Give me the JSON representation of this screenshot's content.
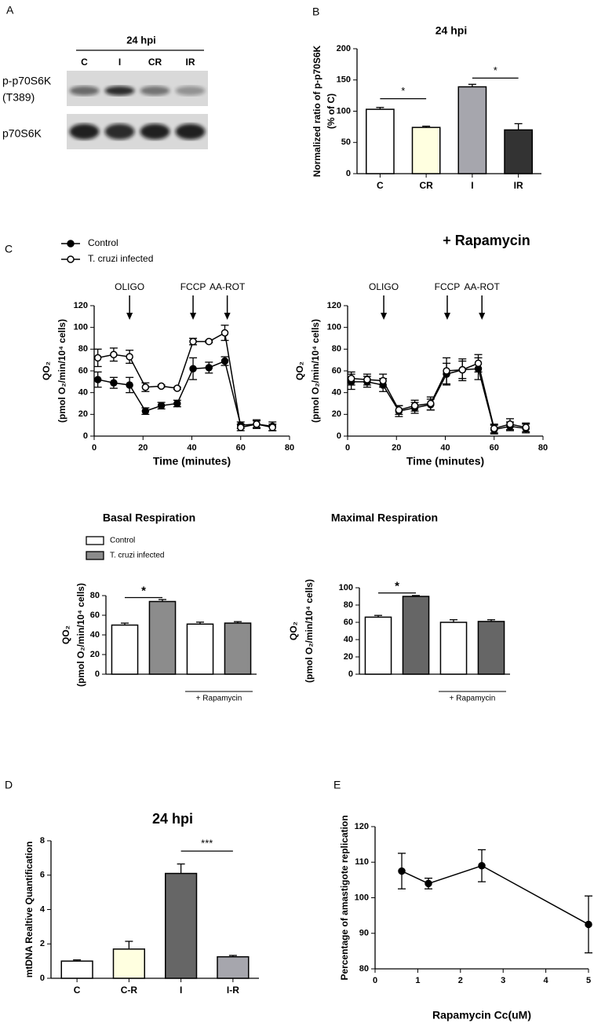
{
  "chart_data": [
    {
      "type": "blot",
      "panel": "A",
      "title": "24 hpi",
      "categories": [
        "C",
        "I",
        "CR",
        "IR"
      ],
      "rows": [
        [
          "p-p70S6K",
          "(T389)"
        ],
        [
          "p70S6K"
        ]
      ]
    },
    {
      "type": "bar",
      "panel": "B",
      "title": "24 hpi",
      "ylabel": [
        "Normalized ratio of p-p70S6K",
        "(% of C)"
      ],
      "categories": [
        "C",
        "CR",
        "I",
        "IR"
      ],
      "values": [
        103,
        74,
        139,
        70
      ],
      "errors": [
        3,
        2,
        4,
        10
      ],
      "colors": [
        "#ffffff",
        "#ffffe0",
        "#a6a6ad",
        "#333333"
      ],
      "ylim": [
        0,
        200
      ],
      "yticks": [
        0,
        50,
        100,
        150,
        200
      ],
      "annotations": [
        {
          "text": "*",
          "categories": [
            "C",
            "CR"
          ],
          "y": 120
        },
        {
          "text": "*",
          "categories": [
            "I",
            "IR"
          ],
          "y": 153
        }
      ]
    },
    {
      "type": "line",
      "panel": "C",
      "x": [
        1.5,
        8,
        14.5,
        21,
        27.5,
        34,
        40.5,
        47,
        53.5,
        60,
        66.5,
        73
      ],
      "series": [
        {
          "name": "Control",
          "color": "#000000",
          "marker": "filled",
          "values": [
            52,
            49,
            47,
            23,
            28,
            30,
            62,
            63,
            69,
            10,
            11,
            9
          ],
          "errors": [
            7,
            5,
            7,
            3,
            3,
            3,
            10,
            5,
            4,
            3,
            4,
            4
          ]
        },
        {
          "name": "T. cruzi infected",
          "color": "#000000",
          "marker": "open",
          "values": [
            72,
            75,
            73,
            45,
            46,
            44,
            87,
            87,
            95,
            8,
            11,
            8
          ],
          "errors": [
            8,
            6,
            6,
            4,
            1,
            1,
            3,
            1,
            7,
            3,
            3,
            3
          ]
        }
      ],
      "xlim": [
        0,
        80
      ],
      "xticks": [
        0,
        20,
        40,
        60,
        80
      ],
      "ylim": [
        0,
        120
      ],
      "yticks": [
        0,
        20,
        40,
        60,
        80,
        100,
        120
      ],
      "xlabel": "Time (minutes)",
      "ylabel": [
        "QO₂",
        "(pmol O₂/min/10⁴ cells)"
      ],
      "annotations": [
        {
          "text": "OLIGO",
          "x": 14.5
        },
        {
          "text": "FCCP",
          "x": 40.5
        },
        {
          "text": "AA-ROT",
          "x": 54.5
        }
      ],
      "legend": "top-left"
    },
    {
      "type": "line",
      "title": "+ Rapamycin",
      "x": [
        1.5,
        8,
        14.5,
        21,
        27.5,
        34,
        40.5,
        47,
        53.5,
        60,
        66.5,
        73
      ],
      "series": [
        {
          "name": "Control",
          "color": "#000000",
          "marker": "filled",
          "values": [
            50,
            50,
            47,
            23,
            26,
            29,
            57,
            61,
            62,
            6,
            9,
            7
          ],
          "errors": [
            7,
            5,
            6,
            5,
            5,
            5,
            10,
            8,
            10,
            4,
            4,
            4
          ]
        },
        {
          "name": "T. cruzi infected",
          "color": "#000000",
          "marker": "open",
          "values": [
            53,
            52,
            51,
            24,
            28,
            30,
            60,
            61,
            67,
            7,
            11,
            8
          ],
          "errors": [
            6,
            5,
            6,
            4,
            5,
            6,
            12,
            10,
            8,
            4,
            5,
            4
          ]
        }
      ],
      "xlim": [
        0,
        80
      ],
      "xticks": [
        0,
        20,
        40,
        60,
        80
      ],
      "ylim": [
        0,
        120
      ],
      "yticks": [
        0,
        20,
        40,
        60,
        80,
        100,
        120
      ],
      "xlabel": "Time (minutes)",
      "ylabel": [
        "QO₂",
        "(pmol O₂/min/10⁴ cells)"
      ],
      "annotations": [
        {
          "text": "OLIGO",
          "x": 14.8
        },
        {
          "text": "FCCP",
          "x": 40.8
        },
        {
          "text": "AA-ROT",
          "x": 55
        }
      ]
    },
    {
      "type": "bar",
      "title": "Basal Respiration",
      "categories": [
        null,
        "+ Rapamycin"
      ],
      "series": [
        {
          "name": "Control",
          "color": "#ffffff",
          "values": [
            50,
            51
          ],
          "errors": [
            2,
            2
          ]
        },
        {
          "name": "T. cruzi infected",
          "color": "#8c8c8c",
          "values": [
            74,
            52
          ],
          "errors": [
            2,
            1.5
          ]
        }
      ],
      "ylim": [
        0,
        80
      ],
      "yticks": [
        0,
        20,
        40,
        60,
        80
      ],
      "ylabel": [
        "QO₂",
        "(pmol O₂/min/10⁴ cells)"
      ],
      "annotations": [
        {
          "text": "*",
          "y": 78
        }
      ],
      "legend": "top-left"
    },
    {
      "type": "bar",
      "title": "Maximal Respiration",
      "categories": [
        null,
        "+ Rapamycin"
      ],
      "series": [
        {
          "name": "Control",
          "color": "#ffffff",
          "values": [
            66,
            60
          ],
          "errors": [
            2,
            3
          ]
        },
        {
          "name": "T. cruzi infected",
          "color": "#666666",
          "values": [
            90,
            61
          ],
          "errors": [
            1,
            2
          ]
        }
      ],
      "ylim": [
        0,
        100
      ],
      "yticks": [
        0,
        20,
        40,
        60,
        80,
        100
      ],
      "ylabel": [
        "QO₂",
        "(pmol O₂/min/10⁴ cells)"
      ],
      "annotations": [
        {
          "text": "*",
          "y": 94
        }
      ]
    },
    {
      "type": "bar",
      "panel": "D",
      "title": "24 hpi",
      "ylabel": [
        "mtDNA Realtive Quantification"
      ],
      "categories": [
        "C",
        "C-R",
        "I",
        "I-R"
      ],
      "values": [
        1,
        1.7,
        6.1,
        1.25
      ],
      "errors": [
        0.07,
        0.45,
        0.55,
        0.08
      ],
      "colors": [
        "#ffffff",
        "#ffffe0",
        "#666666",
        "#a6a6ad"
      ],
      "ylim": [
        0,
        8
      ],
      "yticks": [
        0,
        2,
        4,
        6,
        8
      ],
      "annotations": [
        {
          "text": "***",
          "categories": [
            "I",
            "I-R"
          ],
          "y": 7.4
        }
      ]
    },
    {
      "type": "line",
      "panel": "E",
      "x": [
        0.625,
        1.25,
        2.5,
        5
      ],
      "series": [
        {
          "color": "#000000",
          "marker": "filled",
          "values": [
            107.5,
            104,
            109,
            92.5
          ],
          "errors": [
            5,
            1.5,
            4.5,
            8
          ]
        }
      ],
      "xlim": [
        0,
        5
      ],
      "xticks": [
        0,
        1,
        2,
        3,
        4,
        5
      ],
      "ylim": [
        80,
        120
      ],
      "yticks": [
        80,
        90,
        100,
        110,
        120
      ],
      "xlabel": "Rapamycin Cc(uM)",
      "ylabel": [
        "Percentage of amastigote replication"
      ]
    }
  ]
}
